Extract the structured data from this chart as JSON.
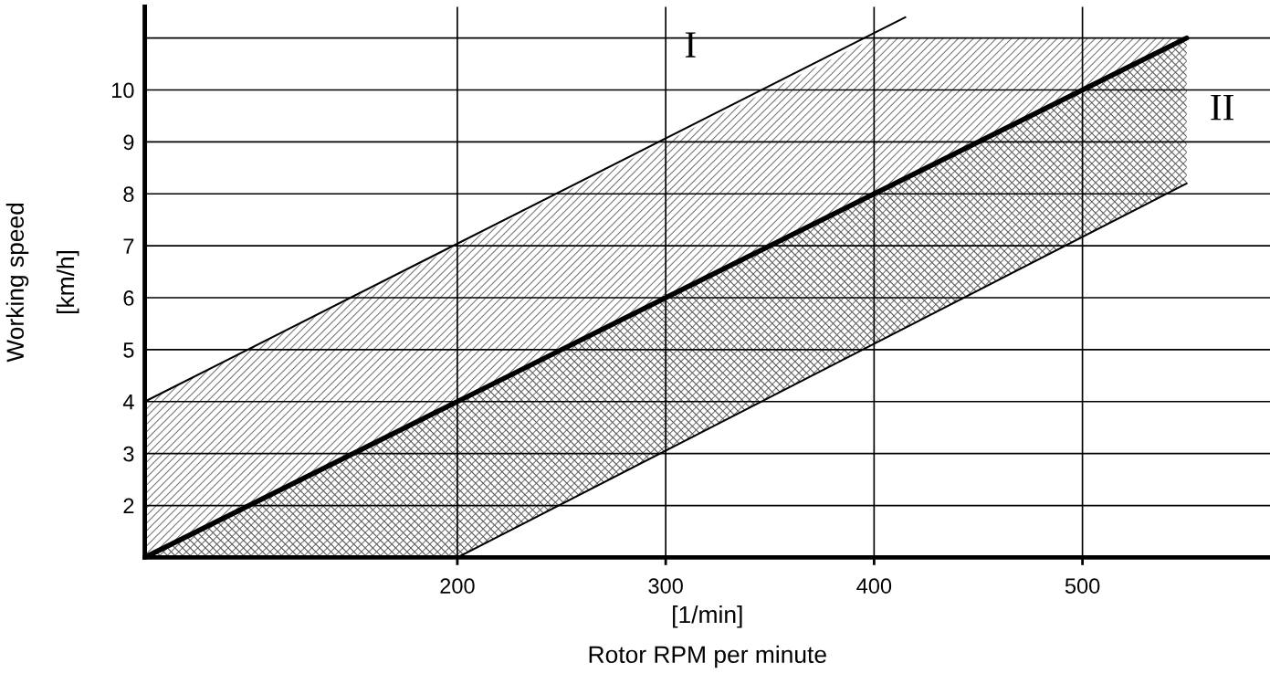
{
  "chart_data": {
    "type": "line",
    "xlabel": "[1/min]\nRotor RPM per minute",
    "ylabel": "Working speed\n[km/h]",
    "xlim": [
      50,
      590
    ],
    "ylim": [
      1,
      11.6
    ],
    "xticks": [
      200,
      300,
      400,
      500
    ],
    "yticks": [
      2,
      3,
      4,
      5,
      6,
      7,
      8,
      9,
      10,
      {
        "value": 11,
        "label": null
      }
    ],
    "grid": true,
    "series": [
      {
        "color": "#000000",
        "x": [
          50,
          415
        ],
        "values": [
          4,
          11.4
        ]
      },
      {
        "color": "#000000",
        "x": [
          50,
          200,
          400,
          550
        ],
        "values": [
          1,
          4,
          8,
          11
        ],
        "upper": [
          4,
          7,
          11,
          11
        ],
        "lower": [
          1,
          1,
          5.1,
          8.2
        ]
      },
      {
        "color": "#000000",
        "x": [
          200,
          550
        ],
        "values": [
          1,
          8.2
        ]
      }
    ],
    "annotations": [
      "I",
      "II"
    ]
  }
}
